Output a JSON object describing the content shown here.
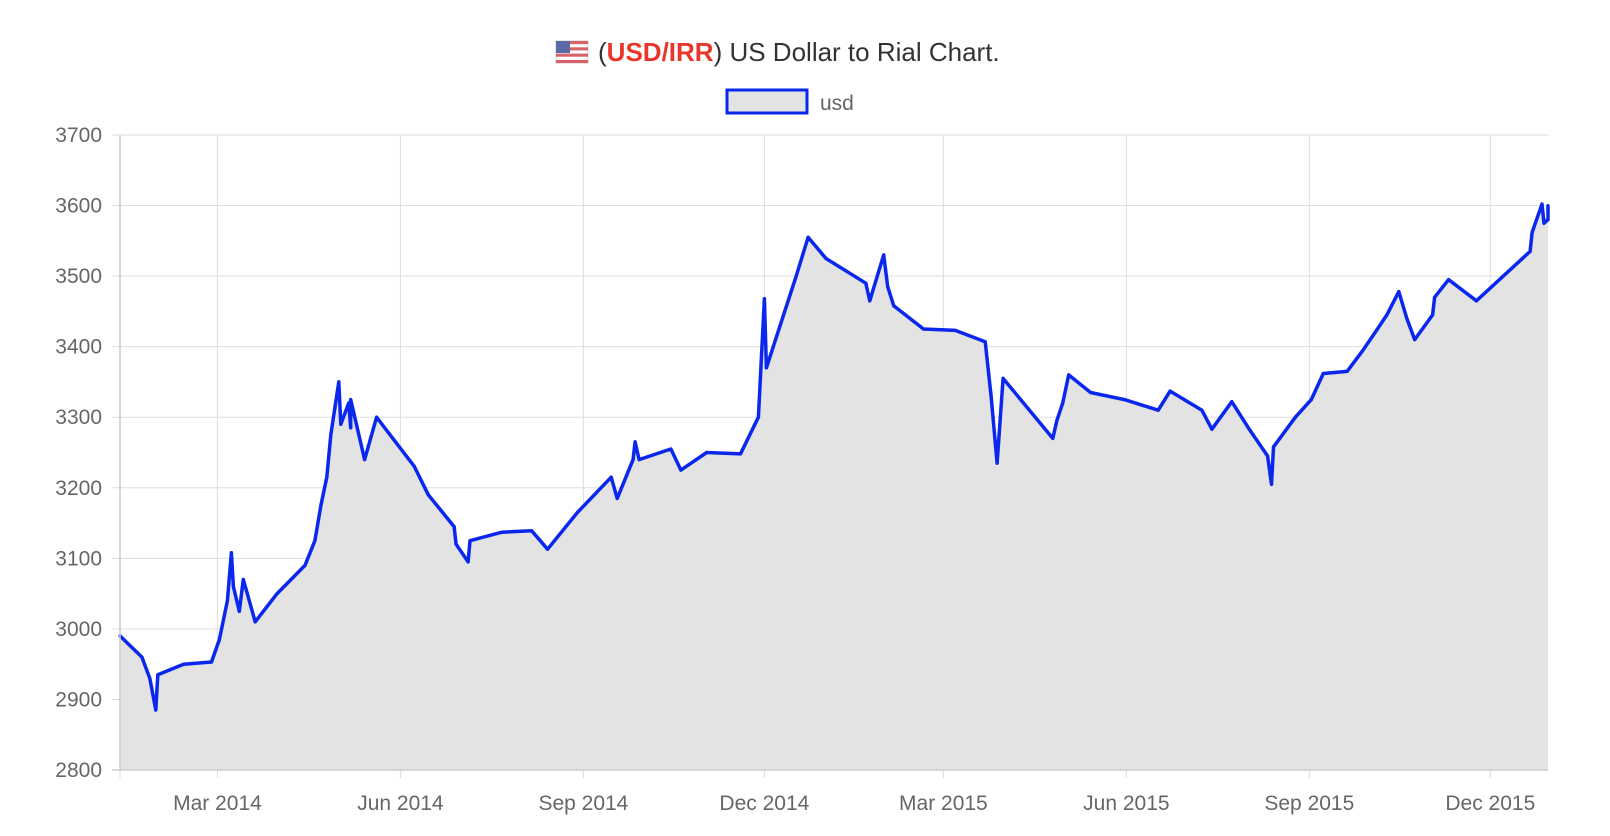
{
  "header": {
    "flag_icon": "us-flag-icon",
    "open_paren": "(",
    "pair": "USD/IRR",
    "rest": ") US Dollar to Rial Chart.",
    "pair_color": "#e8362b"
  },
  "colors": {
    "line": "#0a27ee",
    "fill": "#e3e3e3",
    "grid": "#dddddd",
    "axis_label": "#666666"
  },
  "chart_data": {
    "type": "area",
    "title": "(USD/IRR) US Dollar to Rial Chart.",
    "xlabel": "",
    "ylabel": "",
    "ylim": [
      2800,
      3700
    ],
    "xlim": [
      "2014-01-11",
      "2015-12-30"
    ],
    "y_ticks": [
      2800,
      2900,
      3000,
      3100,
      3200,
      3300,
      3400,
      3500,
      3600,
      3700
    ],
    "x_ticks": [
      {
        "date": "2014-03-01",
        "label": "Mar 2014"
      },
      {
        "date": "2014-06-01",
        "label": "Jun 2014"
      },
      {
        "date": "2014-09-01",
        "label": "Sep 2014"
      },
      {
        "date": "2014-12-01",
        "label": "Dec 2014"
      },
      {
        "date": "2015-03-01",
        "label": "Mar 2015"
      },
      {
        "date": "2015-06-01",
        "label": "Jun 2015"
      },
      {
        "date": "2015-09-01",
        "label": "Sep 2015"
      },
      {
        "date": "2015-12-01",
        "label": "Dec 2015"
      }
    ],
    "grid": true,
    "legend_position": "top-center",
    "series": [
      {
        "name": "usd",
        "points": [
          [
            "2014-01-11",
            2990
          ],
          [
            "2014-01-22",
            2960
          ],
          [
            "2014-01-26",
            2930
          ],
          [
            "2014-01-29",
            2885
          ],
          [
            "2014-01-30",
            2935
          ],
          [
            "2014-02-12",
            2950
          ],
          [
            "2014-02-26",
            2953
          ],
          [
            "2014-03-02",
            2985
          ],
          [
            "2014-03-06",
            3040
          ],
          [
            "2014-03-08",
            3108
          ],
          [
            "2014-03-09",
            3060
          ],
          [
            "2014-03-12",
            3025
          ],
          [
            "2014-03-14",
            3070
          ],
          [
            "2014-03-20",
            3010
          ],
          [
            "2014-03-31",
            3050
          ],
          [
            "2014-04-14",
            3090
          ],
          [
            "2014-04-19",
            3125
          ],
          [
            "2014-04-22",
            3175
          ],
          [
            "2014-04-25",
            3215
          ],
          [
            "2014-04-27",
            3275
          ],
          [
            "2014-05-01",
            3350
          ],
          [
            "2014-05-02",
            3290
          ],
          [
            "2014-05-06",
            3320
          ],
          [
            "2014-05-07",
            3285
          ],
          [
            "2014-05-07",
            3325
          ],
          [
            "2014-05-14",
            3240
          ],
          [
            "2014-05-20",
            3300
          ],
          [
            "2014-06-08",
            3230
          ],
          [
            "2014-06-15",
            3190
          ],
          [
            "2014-06-28",
            3145
          ],
          [
            "2014-06-29",
            3120
          ],
          [
            "2014-07-05",
            3095
          ],
          [
            "2014-07-06",
            3125
          ],
          [
            "2014-07-22",
            3137
          ],
          [
            "2014-08-06",
            3139
          ],
          [
            "2014-08-14",
            3113
          ],
          [
            "2014-08-29",
            3165
          ],
          [
            "2014-09-15",
            3215
          ],
          [
            "2014-09-18",
            3185
          ],
          [
            "2014-09-26",
            3240
          ],
          [
            "2014-09-27",
            3265
          ],
          [
            "2014-09-29",
            3240
          ],
          [
            "2014-10-15",
            3255
          ],
          [
            "2014-10-20",
            3225
          ],
          [
            "2014-11-02",
            3250
          ],
          [
            "2014-11-19",
            3248
          ],
          [
            "2014-11-28",
            3300
          ],
          [
            "2014-12-01",
            3468
          ],
          [
            "2014-12-02",
            3370
          ],
          [
            "2014-12-17",
            3500
          ],
          [
            "2014-12-23",
            3555
          ],
          [
            "2015-01-01",
            3525
          ],
          [
            "2015-01-21",
            3490
          ],
          [
            "2015-01-23",
            3465
          ],
          [
            "2015-01-30",
            3530
          ],
          [
            "2015-02-01",
            3485
          ],
          [
            "2015-02-04",
            3458
          ],
          [
            "2015-02-19",
            3425
          ],
          [
            "2015-03-07",
            3423
          ],
          [
            "2015-03-22",
            3407
          ],
          [
            "2015-03-25",
            3330
          ],
          [
            "2015-03-28",
            3235
          ],
          [
            "2015-03-31",
            3355
          ],
          [
            "2015-04-25",
            3270
          ],
          [
            "2015-04-27",
            3295
          ],
          [
            "2015-04-30",
            3320
          ],
          [
            "2015-05-03",
            3360
          ],
          [
            "2015-05-14",
            3335
          ],
          [
            "2015-05-31",
            3325
          ],
          [
            "2015-06-17",
            3310
          ],
          [
            "2015-06-23",
            3337
          ],
          [
            "2015-07-09",
            3310
          ],
          [
            "2015-07-14",
            3283
          ],
          [
            "2015-07-24",
            3322
          ],
          [
            "2015-08-02",
            3282
          ],
          [
            "2015-08-11",
            3245
          ],
          [
            "2015-08-13",
            3205
          ],
          [
            "2015-08-14",
            3258
          ],
          [
            "2015-08-25",
            3300
          ],
          [
            "2015-09-02",
            3325
          ],
          [
            "2015-09-08",
            3362
          ],
          [
            "2015-09-20",
            3365
          ],
          [
            "2015-09-28",
            3395
          ],
          [
            "2015-10-04",
            3420
          ],
          [
            "2015-10-10",
            3445
          ],
          [
            "2015-10-16",
            3478
          ],
          [
            "2015-10-20",
            3440
          ],
          [
            "2015-10-24",
            3410
          ],
          [
            "2015-11-02",
            3445
          ],
          [
            "2015-11-03",
            3470
          ],
          [
            "2015-11-10",
            3495
          ],
          [
            "2015-11-24",
            3465
          ],
          [
            "2015-12-21",
            3535
          ],
          [
            "2015-12-22",
            3562
          ],
          [
            "2015-12-27",
            3602
          ],
          [
            "2015-12-28",
            3575
          ],
          [
            "2015-12-30",
            3580
          ],
          [
            "2015-12-30",
            3600
          ]
        ]
      }
    ]
  }
}
